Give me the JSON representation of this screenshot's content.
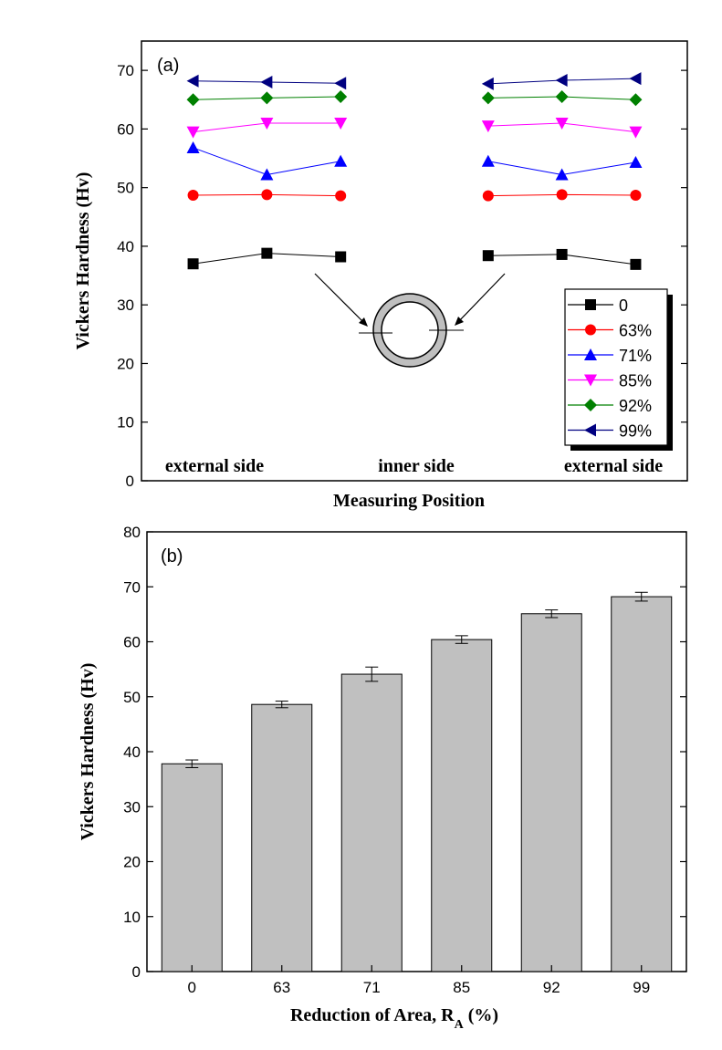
{
  "chart_data": [
    {
      "type": "line",
      "panel_label": "(a)",
      "xlabel": "Measuring Position",
      "ylabel": "Vickers Hardness (Hv)",
      "ylim": [
        0,
        75
      ],
      "yticks": [
        0,
        10,
        20,
        30,
        40,
        50,
        60,
        70
      ],
      "position_labels": [
        "external side",
        "inner side",
        "external side"
      ],
      "x": [
        1,
        2,
        3,
        5,
        6,
        7
      ],
      "xlim": [
        0.3,
        7.7
      ],
      "series": [
        {
          "name": "0",
          "marker": "square",
          "color": "#000000",
          "values": [
            37,
            38.8,
            38.2,
            38.4,
            38.6,
            36.9
          ]
        },
        {
          "name": "63%",
          "marker": "circle",
          "color": "#ff0000",
          "values": [
            48.7,
            48.8,
            48.6,
            48.6,
            48.8,
            48.7
          ]
        },
        {
          "name": "71%",
          "marker": "triangle-up",
          "color": "#0000ff",
          "values": [
            56.8,
            52.2,
            54.5,
            54.5,
            52.2,
            54.3
          ]
        },
        {
          "name": "85%",
          "marker": "triangle-down",
          "color": "#ff00ff",
          "values": [
            59.5,
            61,
            61,
            60.5,
            61,
            59.5
          ]
        },
        {
          "name": "92%",
          "marker": "diamond",
          "color": "#008000",
          "values": [
            65,
            65.3,
            65.5,
            65.3,
            65.5,
            65
          ]
        },
        {
          "name": "99%",
          "marker": "triangle-left",
          "color": "#000080",
          "values": [
            68.2,
            68,
            67.8,
            67.7,
            68.3,
            68.6
          ]
        }
      ]
    },
    {
      "type": "bar",
      "panel_label": "(b)",
      "xlabel": "Reduction of Area, R",
      "xlabel_sub": "A",
      "xlabel_suffix": " (%)",
      "ylabel": "Vickers Hardness (Hv)",
      "ylim": [
        0,
        80
      ],
      "yticks": [
        0,
        10,
        20,
        30,
        40,
        50,
        60,
        70,
        80
      ],
      "categories": [
        "0",
        "63",
        "71",
        "85",
        "92",
        "99"
      ],
      "values": [
        37.8,
        48.6,
        54.1,
        60.4,
        65.1,
        68.2
      ],
      "errors": [
        0.7,
        0.6,
        1.3,
        0.7,
        0.7,
        0.8
      ],
      "bar_color": "#c0c0c0"
    }
  ]
}
